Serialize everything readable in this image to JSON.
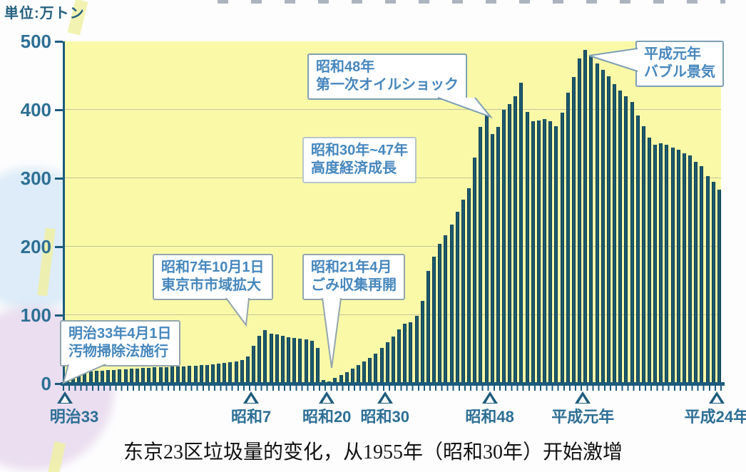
{
  "unit_label": "単位:万トン",
  "caption": "东京23区垃圾量的变化，从1955年（昭和30年）开始激增",
  "colors": {
    "plot_bg": "#f9f9a8",
    "bar": "#1d5a6e",
    "axis": "#1c5b7c",
    "axis_label": "#2d6f95",
    "annotation_text": "#4687bd",
    "annotation_border": "#93a6ad",
    "gridline": "#c3c39b"
  },
  "chart_data": {
    "type": "bar",
    "ylabel": "単位:万トン",
    "ylim": [
      0,
      500
    ],
    "y_ticks": [
      0,
      100,
      200,
      300,
      400,
      500
    ],
    "grid": true,
    "x_start_year": 1900,
    "x_end_year": 2012,
    "x_tick_labels": [
      {
        "label": "明治33",
        "year": 1900
      },
      {
        "label": "昭和7",
        "year": 1932
      },
      {
        "label": "昭和20",
        "year": 1945
      },
      {
        "label": "昭和30",
        "year": 1955
      },
      {
        "label": "昭和48",
        "year": 1973
      },
      {
        "label": "平成元年",
        "year": 1989
      },
      {
        "label": "平成24年",
        "year": 2012
      }
    ],
    "values": [
      16,
      17,
      17,
      18,
      18,
      19,
      19,
      20,
      20,
      21,
      21,
      22,
      22,
      23,
      23,
      24,
      24,
      24,
      25,
      25,
      25,
      26,
      26,
      27,
      27,
      28,
      29,
      30,
      31,
      32,
      34,
      40,
      55,
      70,
      78,
      73,
      72,
      70,
      68,
      67,
      66,
      65,
      63,
      52,
      5,
      3,
      8,
      12,
      17,
      22,
      27,
      32,
      38,
      44,
      52,
      60,
      69,
      79,
      88,
      90,
      99,
      121,
      165,
      185,
      204,
      217,
      232,
      251,
      269,
      285,
      330,
      375,
      395,
      365,
      375,
      400,
      408,
      420,
      440,
      397,
      383,
      384,
      386,
      383,
      376,
      396,
      425,
      448,
      475,
      488,
      480,
      468,
      458,
      449,
      437,
      428,
      420,
      411,
      392,
      376,
      359,
      349,
      351,
      349,
      345,
      342,
      336,
      333,
      324,
      318,
      303,
      295,
      283
    ],
    "annotations": [
      {
        "lines": [
          "明治33年4月1日",
          "汚物掃除法施行"
        ]
      },
      {
        "lines": [
          "昭和7年10月1日",
          "東京市市域拡大"
        ]
      },
      {
        "lines": [
          "昭和21年4月",
          "ごみ収集再開"
        ]
      },
      {
        "lines": [
          "昭和30年~47年",
          "高度経済成長"
        ]
      },
      {
        "lines": [
          "昭和48年",
          "第一次オイルショック"
        ]
      },
      {
        "lines": [
          "平成元年",
          "バブル景気"
        ]
      }
    ]
  }
}
